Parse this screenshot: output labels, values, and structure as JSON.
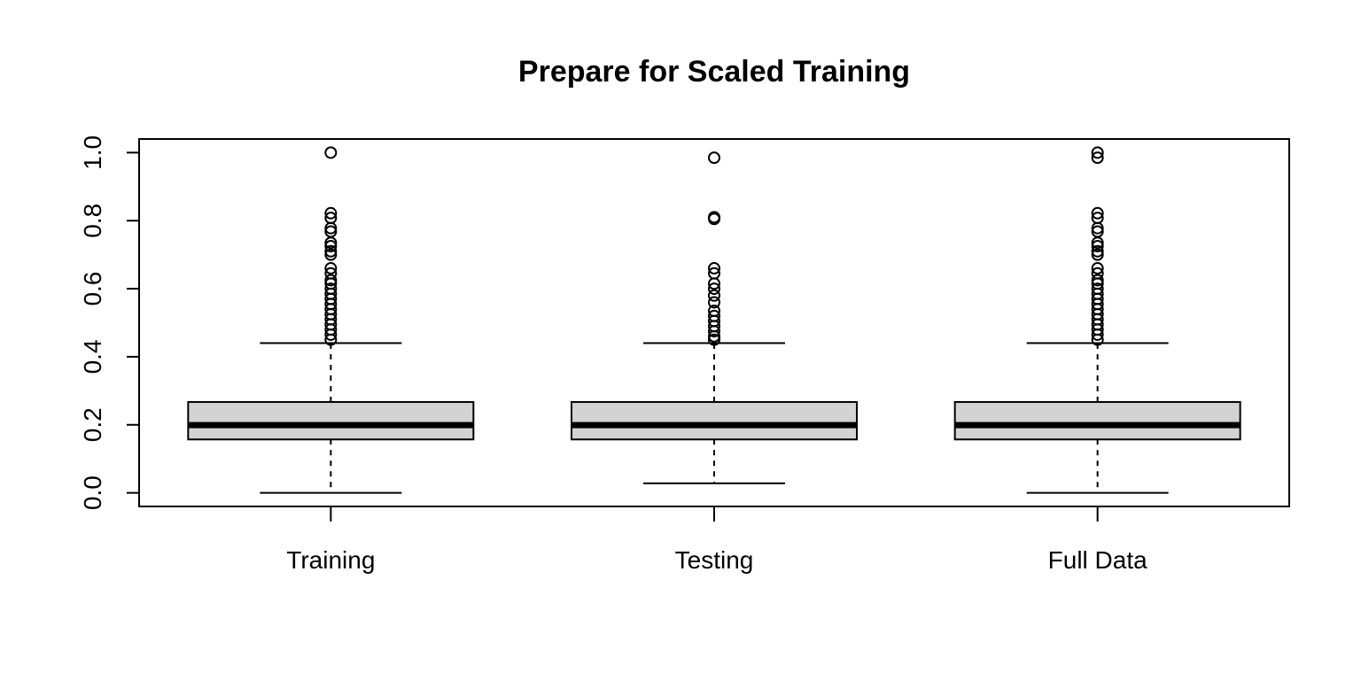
{
  "chart_data": {
    "type": "boxplot",
    "title": "Prepare for Scaled Training",
    "xlabel": "",
    "ylabel": "",
    "ylim": [
      -0.04,
      1.04
    ],
    "yticks": [
      "0.0",
      "0.2",
      "0.4",
      "0.6",
      "0.8",
      "1.0"
    ],
    "categories": [
      "Training",
      "Testing",
      "Full Data"
    ],
    "grid": false,
    "legend": "none",
    "box_fill": "#d3d3d3",
    "boxes": [
      {
        "name": "Training",
        "whisker_low": 0.0,
        "q1": 0.157,
        "median": 0.199,
        "q3": 0.267,
        "whisker_high": 0.44,
        "outliers": [
          1.0,
          0.822,
          0.808,
          0.778,
          0.768,
          0.735,
          0.725,
          0.71,
          0.7,
          0.66,
          0.645,
          0.625,
          0.615,
          0.6,
          0.585,
          0.57,
          0.555,
          0.54,
          0.525,
          0.51,
          0.495,
          0.48,
          0.465,
          0.45
        ]
      },
      {
        "name": "Testing",
        "whisker_low": 0.028,
        "q1": 0.157,
        "median": 0.199,
        "q3": 0.267,
        "whisker_high": 0.44,
        "outliers": [
          0.985,
          0.81,
          0.805,
          0.66,
          0.645,
          0.615,
          0.6,
          0.58,
          0.56,
          0.535,
          0.52,
          0.505,
          0.49,
          0.475,
          0.46,
          0.45
        ]
      },
      {
        "name": "Full Data",
        "whisker_low": 0.0,
        "q1": 0.157,
        "median": 0.199,
        "q3": 0.267,
        "whisker_high": 0.44,
        "outliers": [
          1.0,
          0.985,
          0.822,
          0.808,
          0.778,
          0.768,
          0.735,
          0.725,
          0.71,
          0.7,
          0.66,
          0.645,
          0.625,
          0.615,
          0.6,
          0.585,
          0.57,
          0.555,
          0.54,
          0.525,
          0.51,
          0.495,
          0.48,
          0.465,
          0.45
        ]
      }
    ]
  }
}
